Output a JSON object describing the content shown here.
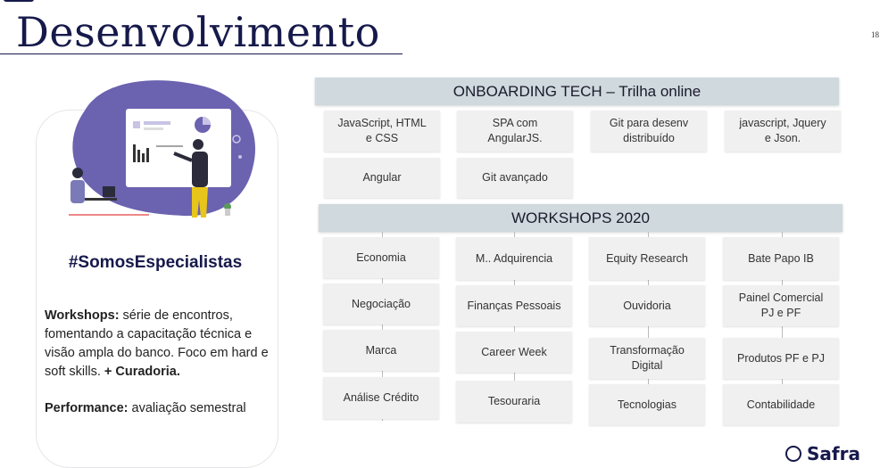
{
  "slide": {
    "title": "Desenvolvimento",
    "page_number": "18"
  },
  "left_card": {
    "hashtag": "#SomosEspecialistas",
    "workshops_label": "Workshops:",
    "workshops_text": " série de encontros, fomentando a capacitação técnica e visão ampla do banco. Foco em hard e soft skills. ",
    "curadoria": "+ Curadoria.",
    "performance_label": "Performance:",
    "performance_text": " avaliação semestral"
  },
  "onboarding": {
    "header": "ONBOARDING TECH – Trilha online",
    "items": [
      "JavaScript, HTML\ne CSS",
      "SPA com\nAngularJS.",
      "Git para desenv\ndistribuído",
      "javascript, Jquery\ne Json.",
      "Angular",
      "Git avançado"
    ]
  },
  "workshops": {
    "header": "WORKSHOPS 2020",
    "columns": [
      [
        "Economia",
        "Negociação",
        "Marca",
        "Análise Crédito"
      ],
      [
        "M.. Adquirencia",
        "Finanças Pessoais",
        "Career Week",
        "Tesouraria"
      ],
      [
        "Equity Research",
        "Ouvidoria",
        "Transformação\nDigital",
        "Tecnologias"
      ],
      [
        "Bate Papo IB",
        "Painel Comercial\nPJ e PF",
        "Produtos PF e PJ",
        "Contabilidade"
      ]
    ]
  },
  "brand": {
    "logo_text": "Safra",
    "colors": {
      "navy": "#16194a",
      "band": "#cfd9de",
      "box": "#f0f0f0",
      "illustration_blob": "#6b62b0"
    }
  }
}
